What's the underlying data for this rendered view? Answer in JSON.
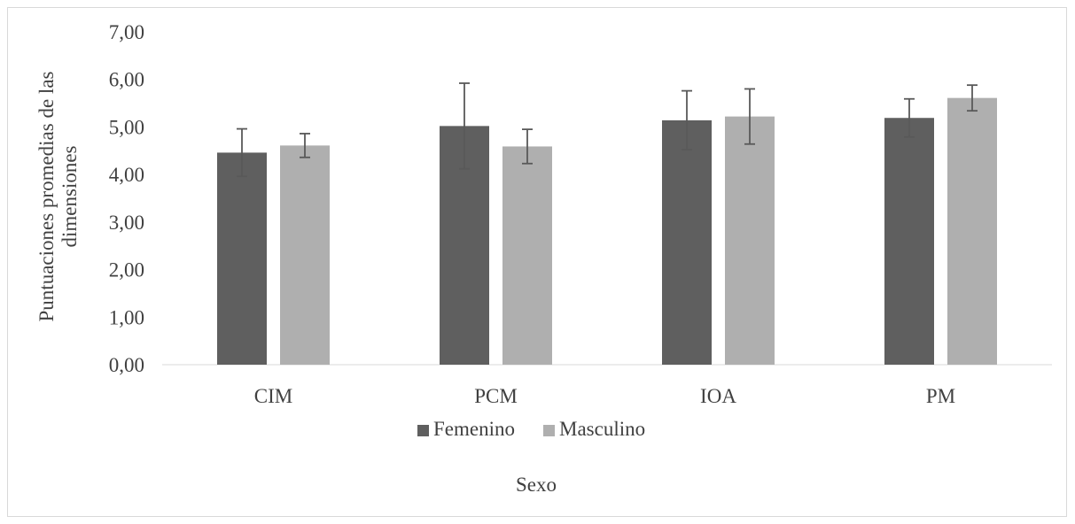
{
  "chart_data": {
    "type": "bar",
    "categories": [
      "CIM",
      "PCM",
      "IOA",
      "PM"
    ],
    "series": [
      {
        "name": "Femenino",
        "color": "#5f5f5f",
        "values": [
          4.46,
          5.02,
          5.14,
          5.19
        ],
        "error": [
          0.5,
          0.9,
          0.62,
          0.4
        ]
      },
      {
        "name": "Masculino",
        "color": "#afafaf",
        "values": [
          4.61,
          4.59,
          5.22,
          5.61
        ],
        "error": [
          0.25,
          0.36,
          0.58,
          0.27
        ]
      }
    ],
    "ylabel_lines": [
      "Puntuaciones promedias de las",
      "dimensiones"
    ],
    "xlabel": "Sexo",
    "ylim": [
      0,
      7
    ],
    "yticks": [
      "0,00",
      "1,00",
      "2,00",
      "3,00",
      "4,00",
      "5,00",
      "6,00",
      "7,00"
    ],
    "grid": false,
    "legend_position": "bottom",
    "axis_color": "#d9d9d9",
    "errorbar_color": "#595959"
  }
}
